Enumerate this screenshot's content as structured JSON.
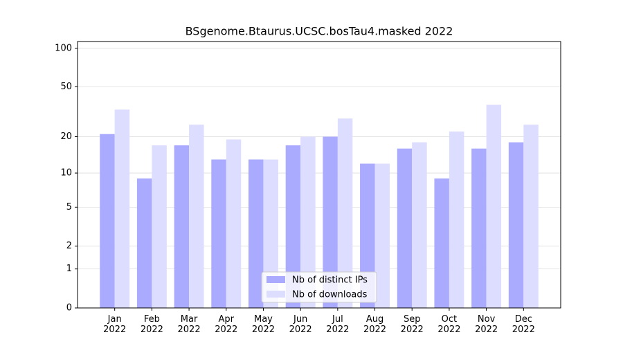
{
  "chart_data": {
    "type": "bar",
    "title": "BSgenome.Btaurus.UCSC.bosTau4.masked 2022",
    "categories": [
      "Jan 2022",
      "Feb 2022",
      "Mar 2022",
      "Apr 2022",
      "May 2022",
      "Jun 2022",
      "Jul 2022",
      "Aug 2022",
      "Sep 2022",
      "Oct 2022",
      "Nov 2022",
      "Dec 2022"
    ],
    "series": [
      {
        "name": "Nb of distinct IPs",
        "color": "#aaaaff",
        "values": [
          21,
          9,
          17,
          13,
          13,
          17,
          20,
          12,
          16,
          9,
          16,
          18
        ]
      },
      {
        "name": "Nb of downloads",
        "color": "#ddddff",
        "values": [
          33,
          17,
          25,
          19,
          13,
          20,
          28,
          12,
          18,
          22,
          36,
          25
        ]
      }
    ],
    "y_scale": "log1p",
    "ylim": [
      0,
      113
    ],
    "yticks": [
      0,
      1,
      2,
      5,
      10,
      20,
      50,
      100
    ],
    "grid": true,
    "legend": "lower center"
  }
}
